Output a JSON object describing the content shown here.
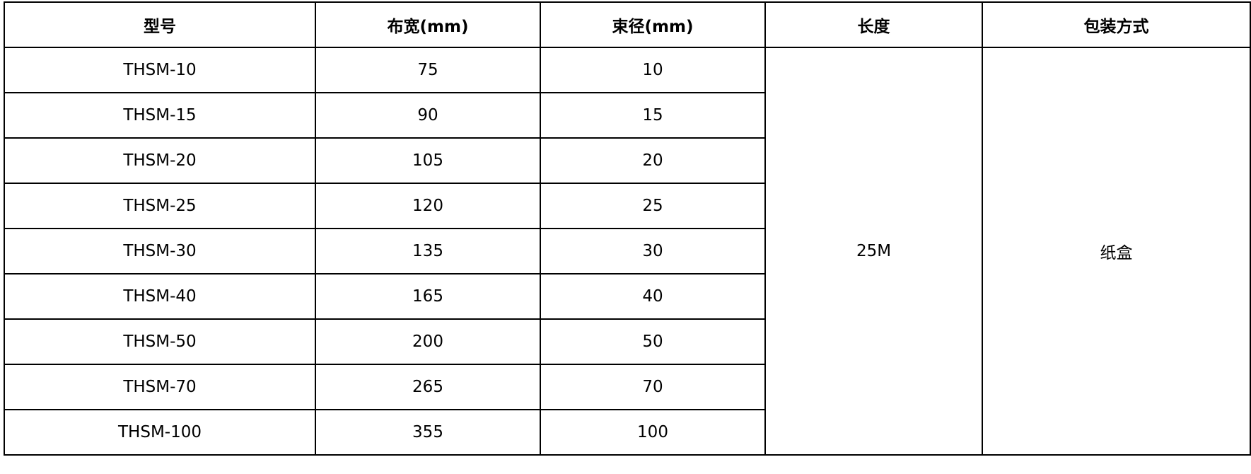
{
  "headers": [
    "型号",
    "布宽(mm)",
    "束径(mm)",
    "长度",
    "包装方式"
  ],
  "rows": [
    {
      "model": "THSM-10",
      "width": "75",
      "diameter": "10"
    },
    {
      "model": "THSM-15",
      "width": "90",
      "diameter": "15"
    },
    {
      "model": "THSM-20",
      "width": "105",
      "diameter": "20"
    },
    {
      "model": "THSM-25",
      "width": "120",
      "diameter": "25"
    },
    {
      "model": "THSM-30",
      "width": "135",
      "diameter": "30"
    },
    {
      "model": "THSM-40",
      "width": "165",
      "diameter": "40"
    },
    {
      "model": "THSM-50",
      "width": "200",
      "diameter": "50"
    },
    {
      "model": "THSM-70",
      "width": "265",
      "diameter": "70"
    },
    {
      "model": "THSM-100",
      "width": "355",
      "diameter": "100"
    }
  ],
  "length": "25M",
  "packaging": "纸盒"
}
